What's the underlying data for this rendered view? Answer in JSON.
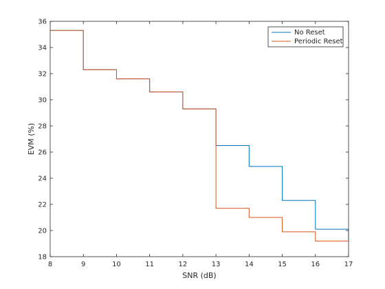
{
  "chart_data": {
    "type": "line",
    "step": "post",
    "xlabel": "SNR (dB)",
    "ylabel": "EVM (%)",
    "xlim": [
      8,
      17
    ],
    "ylim": [
      18,
      36
    ],
    "xticks": [
      8,
      9,
      10,
      11,
      12,
      13,
      14,
      15,
      16,
      17
    ],
    "yticks": [
      18,
      20,
      22,
      24,
      26,
      28,
      30,
      32,
      34,
      36
    ],
    "grid": false,
    "legend_position": "top-right",
    "x": [
      8,
      9,
      10,
      11,
      12,
      13,
      14,
      15,
      16,
      17
    ],
    "series": [
      {
        "name": "No Reset",
        "color": "#0072BD",
        "values": [
          35.3,
          32.3,
          31.6,
          30.6,
          29.3,
          26.5,
          24.9,
          22.3,
          20.1,
          19.3
        ]
      },
      {
        "name": "Periodic Reset",
        "color": "#D95319",
        "values": [
          35.3,
          32.3,
          31.6,
          30.6,
          29.3,
          21.7,
          21.0,
          19.9,
          19.2,
          19.2
        ]
      }
    ]
  }
}
